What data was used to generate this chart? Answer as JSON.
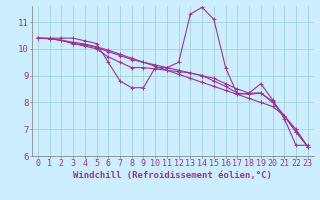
{
  "xlabel": "Windchill (Refroidissement éolien,°C)",
  "background_color": "#cceeff",
  "line_color": "#993399",
  "grid_color": "#99cccc",
  "xlim": [
    -0.5,
    23.5
  ],
  "ylim": [
    6,
    11.6
  ],
  "xticks": [
    0,
    1,
    2,
    3,
    4,
    5,
    6,
    7,
    8,
    9,
    10,
    11,
    12,
    13,
    14,
    15,
    16,
    17,
    18,
    19,
    20,
    21,
    22,
    23
  ],
  "yticks": [
    6,
    7,
    8,
    9,
    10,
    11
  ],
  "series": [
    {
      "x": [
        0,
        1,
        2,
        3,
        4,
        5,
        6,
        7,
        8,
        9,
        10,
        11,
        12,
        13,
        14,
        15,
        16,
        17,
        18,
        19,
        20,
        21,
        22,
        23
      ],
      "y": [
        10.4,
        10.4,
        10.4,
        10.4,
        10.3,
        10.2,
        9.5,
        8.8,
        8.55,
        8.55,
        9.3,
        9.3,
        9.5,
        11.3,
        11.55,
        11.1,
        9.3,
        8.3,
        8.35,
        8.7,
        8.1,
        7.4,
        6.4,
        6.4
      ]
    },
    {
      "x": [
        0,
        1,
        2,
        3,
        4,
        5,
        6,
        7,
        8,
        9,
        10,
        11,
        12,
        13,
        14,
        15,
        16,
        17,
        18,
        19,
        20,
        21,
        22,
        23
      ],
      "y": [
        10.4,
        10.38,
        10.32,
        10.25,
        10.18,
        10.08,
        9.95,
        9.8,
        9.65,
        9.5,
        9.35,
        9.2,
        9.05,
        8.9,
        8.75,
        8.6,
        8.45,
        8.3,
        8.15,
        8.0,
        7.85,
        7.5,
        7.0,
        6.35
      ]
    },
    {
      "x": [
        0,
        1,
        2,
        3,
        4,
        5,
        6,
        7,
        8,
        9,
        10,
        11,
        12,
        13,
        14,
        15,
        16,
        17,
        18,
        19,
        20,
        21,
        22,
        23
      ],
      "y": [
        10.4,
        10.38,
        10.32,
        10.2,
        10.1,
        10.0,
        9.7,
        9.5,
        9.3,
        9.3,
        9.25,
        9.2,
        9.15,
        9.1,
        9.0,
        8.8,
        8.6,
        8.35,
        8.3,
        8.35,
        8.0,
        7.5,
        6.9,
        6.35
      ]
    },
    {
      "x": [
        0,
        1,
        2,
        3,
        4,
        5,
        6,
        7,
        8,
        9,
        10,
        11,
        12,
        13,
        14,
        15,
        16,
        17,
        18,
        19,
        20,
        21,
        22,
        23
      ],
      "y": [
        10.4,
        10.38,
        10.32,
        10.2,
        10.15,
        10.05,
        9.9,
        9.75,
        9.6,
        9.5,
        9.4,
        9.3,
        9.2,
        9.1,
        9.0,
        8.9,
        8.7,
        8.5,
        8.35,
        8.35,
        8.05,
        7.5,
        6.9,
        6.35
      ]
    }
  ],
  "marker": "+",
  "markersize": 3,
  "linewidth": 0.8,
  "fontsize_ticks": 6,
  "fontsize_label": 6.5
}
